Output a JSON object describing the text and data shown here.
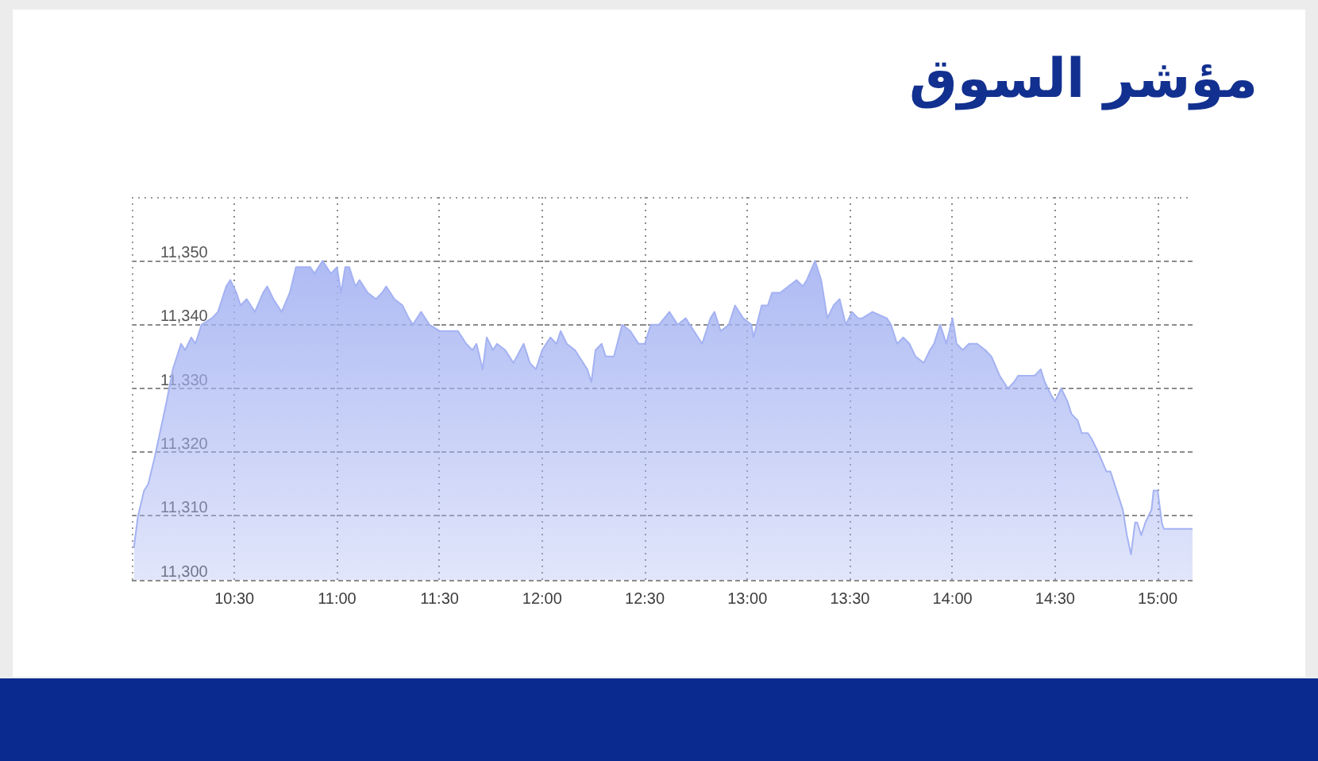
{
  "chart_data": {
    "type": "area",
    "title": "مؤشر السوق",
    "x": [
      10.01,
      10.03,
      10.06,
      10.08,
      10.11,
      10.15,
      10.17,
      10.2,
      10.24,
      10.26,
      10.29,
      10.31,
      10.34,
      10.39,
      10.42,
      10.46,
      10.48,
      10.51,
      10.53,
      10.56,
      10.6,
      10.64,
      10.66,
      10.69,
      10.73,
      10.77,
      10.8,
      10.84,
      10.87,
      10.89,
      10.93,
      10.97,
      11,
      11.02,
      11.04,
      11.06,
      11.09,
      11.11,
      11.15,
      11.19,
      11.22,
      11.24,
      11.28,
      11.32,
      11.35,
      11.37,
      11.41,
      11.45,
      11.5,
      11.55,
      11.59,
      11.63,
      11.66,
      11.68,
      11.71,
      11.73,
      11.76,
      11.78,
      11.82,
      11.86,
      11.91,
      11.94,
      11.97,
      12,
      12.04,
      12.07,
      12.09,
      12.12,
      12.16,
      12.2,
      12.22,
      12.24,
      12.26,
      12.29,
      12.31,
      12.35,
      12.39,
      12.43,
      12.47,
      12.5,
      12.53,
      12.57,
      12.62,
      12.66,
      12.7,
      12.74,
      12.78,
      12.82,
      12.84,
      12.87,
      12.91,
      12.94,
      12.98,
      13.02,
      13.03,
      13.07,
      13.1,
      13.12,
      13.16,
      13.2,
      13.24,
      13.27,
      13.29,
      13.33,
      13.36,
      13.39,
      13.42,
      13.45,
      13.48,
      13.51,
      13.54,
      13.56,
      13.61,
      13.68,
      13.7,
      13.73,
      13.76,
      13.79,
      13.82,
      13.86,
      13.89,
      13.91,
      13.94,
      13.97,
      14,
      14.02,
      14.05,
      14.08,
      14.12,
      14.16,
      14.19,
      14.23,
      14.27,
      14.3,
      14.32,
      14.36,
      14.4,
      14.43,
      14.45,
      14.48,
      14.5,
      14.53,
      14.56,
      14.58,
      14.61,
      14.63,
      14.66,
      14.68,
      14.71,
      14.75,
      14.77,
      14.8,
      14.83,
      14.85,
      14.87,
      14.89,
      14.9,
      14.92,
      14.94,
      14.97,
      14.98,
      15,
      15.02,
      15.03,
      15.17
    ],
    "values": [
      11305,
      11310,
      11314,
      11315,
      11319,
      11325,
      11328,
      11333,
      11337,
      11336,
      11338,
      11337,
      11340,
      11341,
      11342,
      11346,
      11347,
      11345,
      11343,
      11344,
      11342,
      11345,
      11346,
      11344,
      11342,
      11345,
      11349,
      11349,
      11349,
      11348,
      11350,
      11348,
      11349,
      11345,
      11349,
      11349,
      11346,
      11347,
      11345,
      11344,
      11345,
      11346,
      11344,
      11343,
      11341,
      11340,
      11342,
      11340,
      11339,
      11339,
      11339,
      11337,
      11336,
      11337,
      11333,
      11338,
      11336,
      11337,
      11336,
      11334,
      11337,
      11334,
      11333,
      11336,
      11338,
      11337,
      11339,
      11337,
      11336,
      11334,
      11333,
      11331,
      11336,
      11337,
      11335,
      11335,
      11340,
      11339,
      11337,
      11337,
      11340,
      11340,
      11342,
      11340,
      11341,
      11339,
      11337,
      11341,
      11342,
      11339,
      11340,
      11343,
      11341,
      11340,
      11338,
      11343,
      11343,
      11345,
      11345,
      11346,
      11347,
      11346,
      11347,
      11350,
      11347,
      11341,
      11343,
      11344,
      11340,
      11342,
      11341,
      11341,
      11342,
      11341,
      11340,
      11337,
      11338,
      11337,
      11335,
      11334,
      11336,
      11337,
      11340,
      11337,
      11341,
      11337,
      11336,
      11337,
      11337,
      11336,
      11335,
      11332,
      11330,
      11331,
      11332,
      11332,
      11332,
      11333,
      11331,
      11329,
      11328,
      11330,
      11328,
      11326,
      11325,
      11323,
      11323,
      11322,
      11320,
      11317,
      11317,
      11314,
      11311,
      11307,
      11304,
      11309,
      11309,
      11307,
      11309,
      11311,
      11314,
      11314,
      11309,
      11308,
      11308
    ],
    "color": "#a4b2f2",
    "xlim": [
      10,
      15.17
    ],
    "xticks": [
      {
        "value": 10.5,
        "label": "10:30"
      },
      {
        "value": 11,
        "label": "11:00"
      },
      {
        "value": 11.5,
        "label": "11:30"
      },
      {
        "value": 12,
        "label": "12:00"
      },
      {
        "value": 12.5,
        "label": "12:30"
      },
      {
        "value": 13,
        "label": "13:00"
      },
      {
        "value": 13.5,
        "label": "13:30"
      },
      {
        "value": 14,
        "label": "14:00"
      },
      {
        "value": 14.5,
        "label": "14:30"
      },
      {
        "value": 15,
        "label": "15:00"
      }
    ],
    "ylim": [
      11300,
      11360
    ],
    "yticks": [
      {
        "value": 11300,
        "label": "11,300"
      },
      {
        "value": 11310,
        "label": "11,310"
      },
      {
        "value": 11320,
        "label": "11,320"
      },
      {
        "value": 11330,
        "label": "11,330"
      },
      {
        "value": 11340,
        "label": "11,340"
      },
      {
        "value": 11350,
        "label": "11,350"
      }
    ],
    "grid": true
  }
}
